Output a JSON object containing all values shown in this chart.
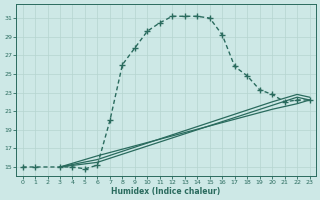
{
  "xlabel": "Humidex (Indice chaleur)",
  "bg_color": "#cde8e6",
  "line_color": "#2a6b5e",
  "grid_color": "#b5d5d0",
  "xlim": [
    -0.5,
    23.5
  ],
  "ylim": [
    14.0,
    32.5
  ],
  "xticks": [
    0,
    1,
    2,
    3,
    4,
    5,
    6,
    7,
    8,
    9,
    10,
    11,
    12,
    13,
    14,
    15,
    16,
    17,
    18,
    19,
    20,
    21,
    22,
    23
  ],
  "yticks": [
    15,
    17,
    19,
    21,
    23,
    25,
    27,
    29,
    31
  ],
  "main_x": [
    0,
    1,
    3,
    4,
    5,
    6,
    7,
    8,
    9,
    10,
    11,
    12,
    13,
    14,
    15,
    16,
    17,
    18,
    19,
    20,
    21,
    22,
    23
  ],
  "main_y": [
    15,
    15,
    15,
    15,
    14.8,
    15.2,
    20.0,
    26.0,
    27.8,
    29.6,
    30.5,
    31.2,
    31.2,
    31.2,
    31.0,
    29.2,
    25.8,
    24.8,
    23.3,
    22.8,
    22.0,
    22.2,
    22.2
  ],
  "line1_x": [
    3,
    6,
    22,
    23
  ],
  "line1_y": [
    15,
    15.5,
    22.5,
    22.2
  ],
  "line2_x": [
    3,
    6,
    20,
    22,
    23
  ],
  "line2_y": [
    15,
    15.8,
    22.0,
    22.8,
    22.5
  ],
  "line3_x": [
    3,
    6,
    20,
    22,
    23
  ],
  "line3_y": [
    15,
    16.2,
    21.2,
    21.8,
    22.2
  ]
}
